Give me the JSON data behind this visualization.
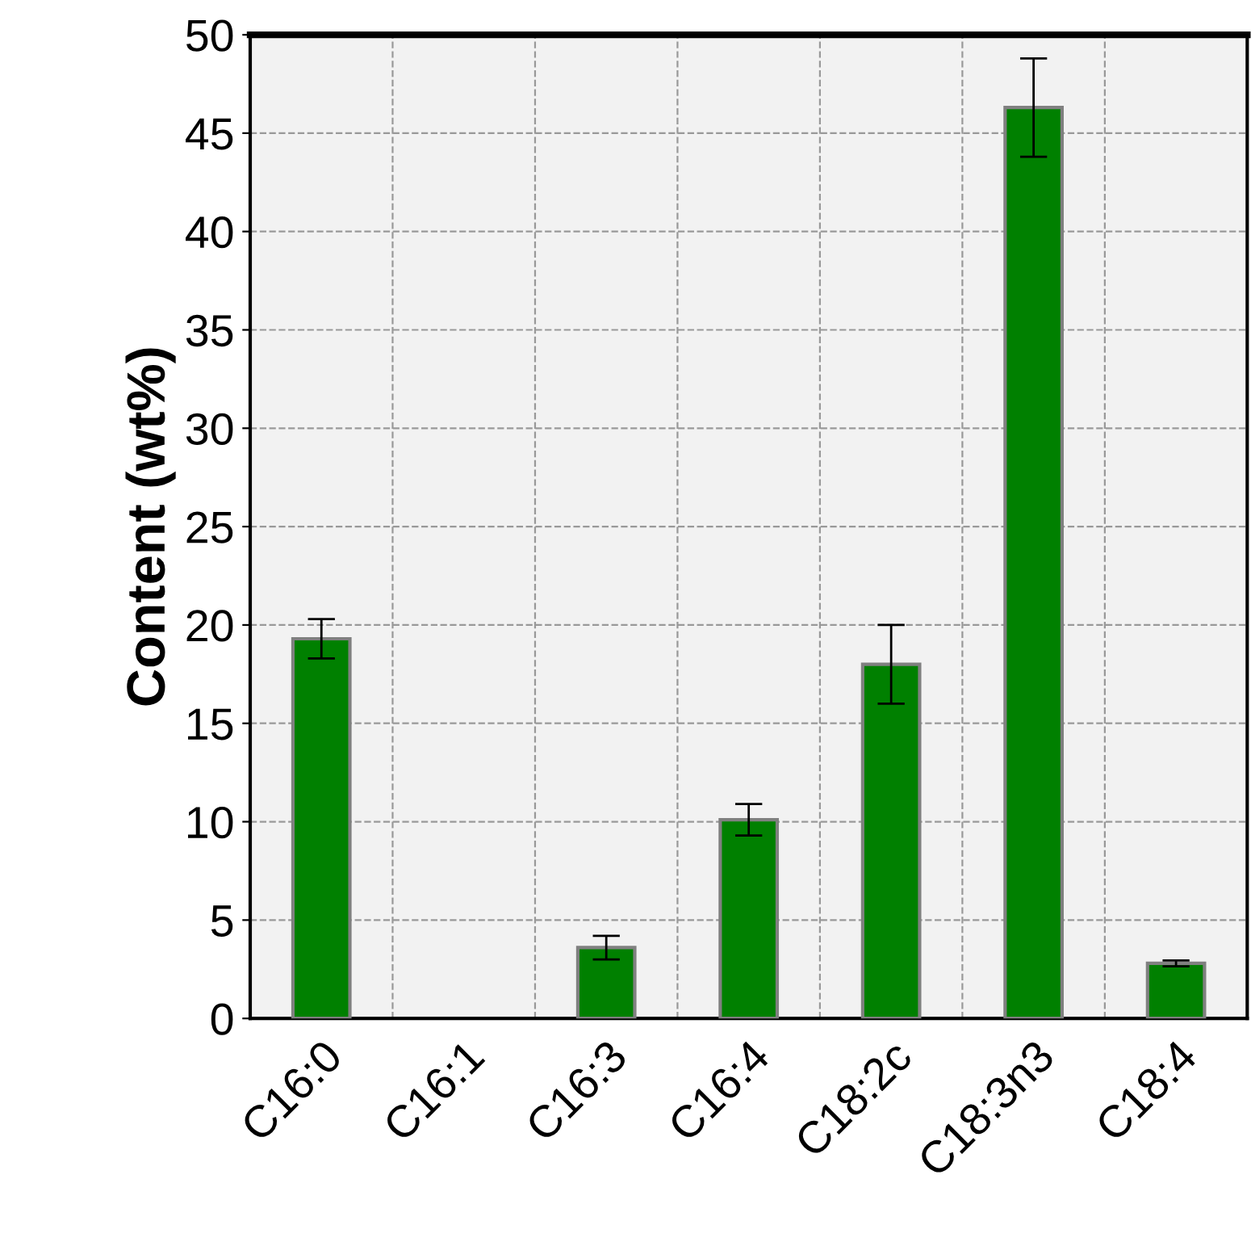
{
  "chart_data": {
    "type": "bar",
    "ylabel": "Content (wt%)",
    "categories": [
      "C16:0",
      "C16:1",
      "C16:3",
      "C16:4",
      "C18:2c",
      "C18:3n3",
      "C18:4"
    ],
    "values": [
      19.3,
      null,
      3.6,
      10.1,
      18.0,
      46.3,
      2.8
    ],
    "errors": [
      1.0,
      null,
      0.6,
      0.8,
      2.0,
      2.5,
      0.15
    ],
    "color": "#008000",
    "ylim": [
      0,
      50
    ],
    "yticks": [
      0,
      5,
      10,
      15,
      20,
      25,
      30,
      35,
      40,
      45,
      50
    ],
    "grid": true
  }
}
